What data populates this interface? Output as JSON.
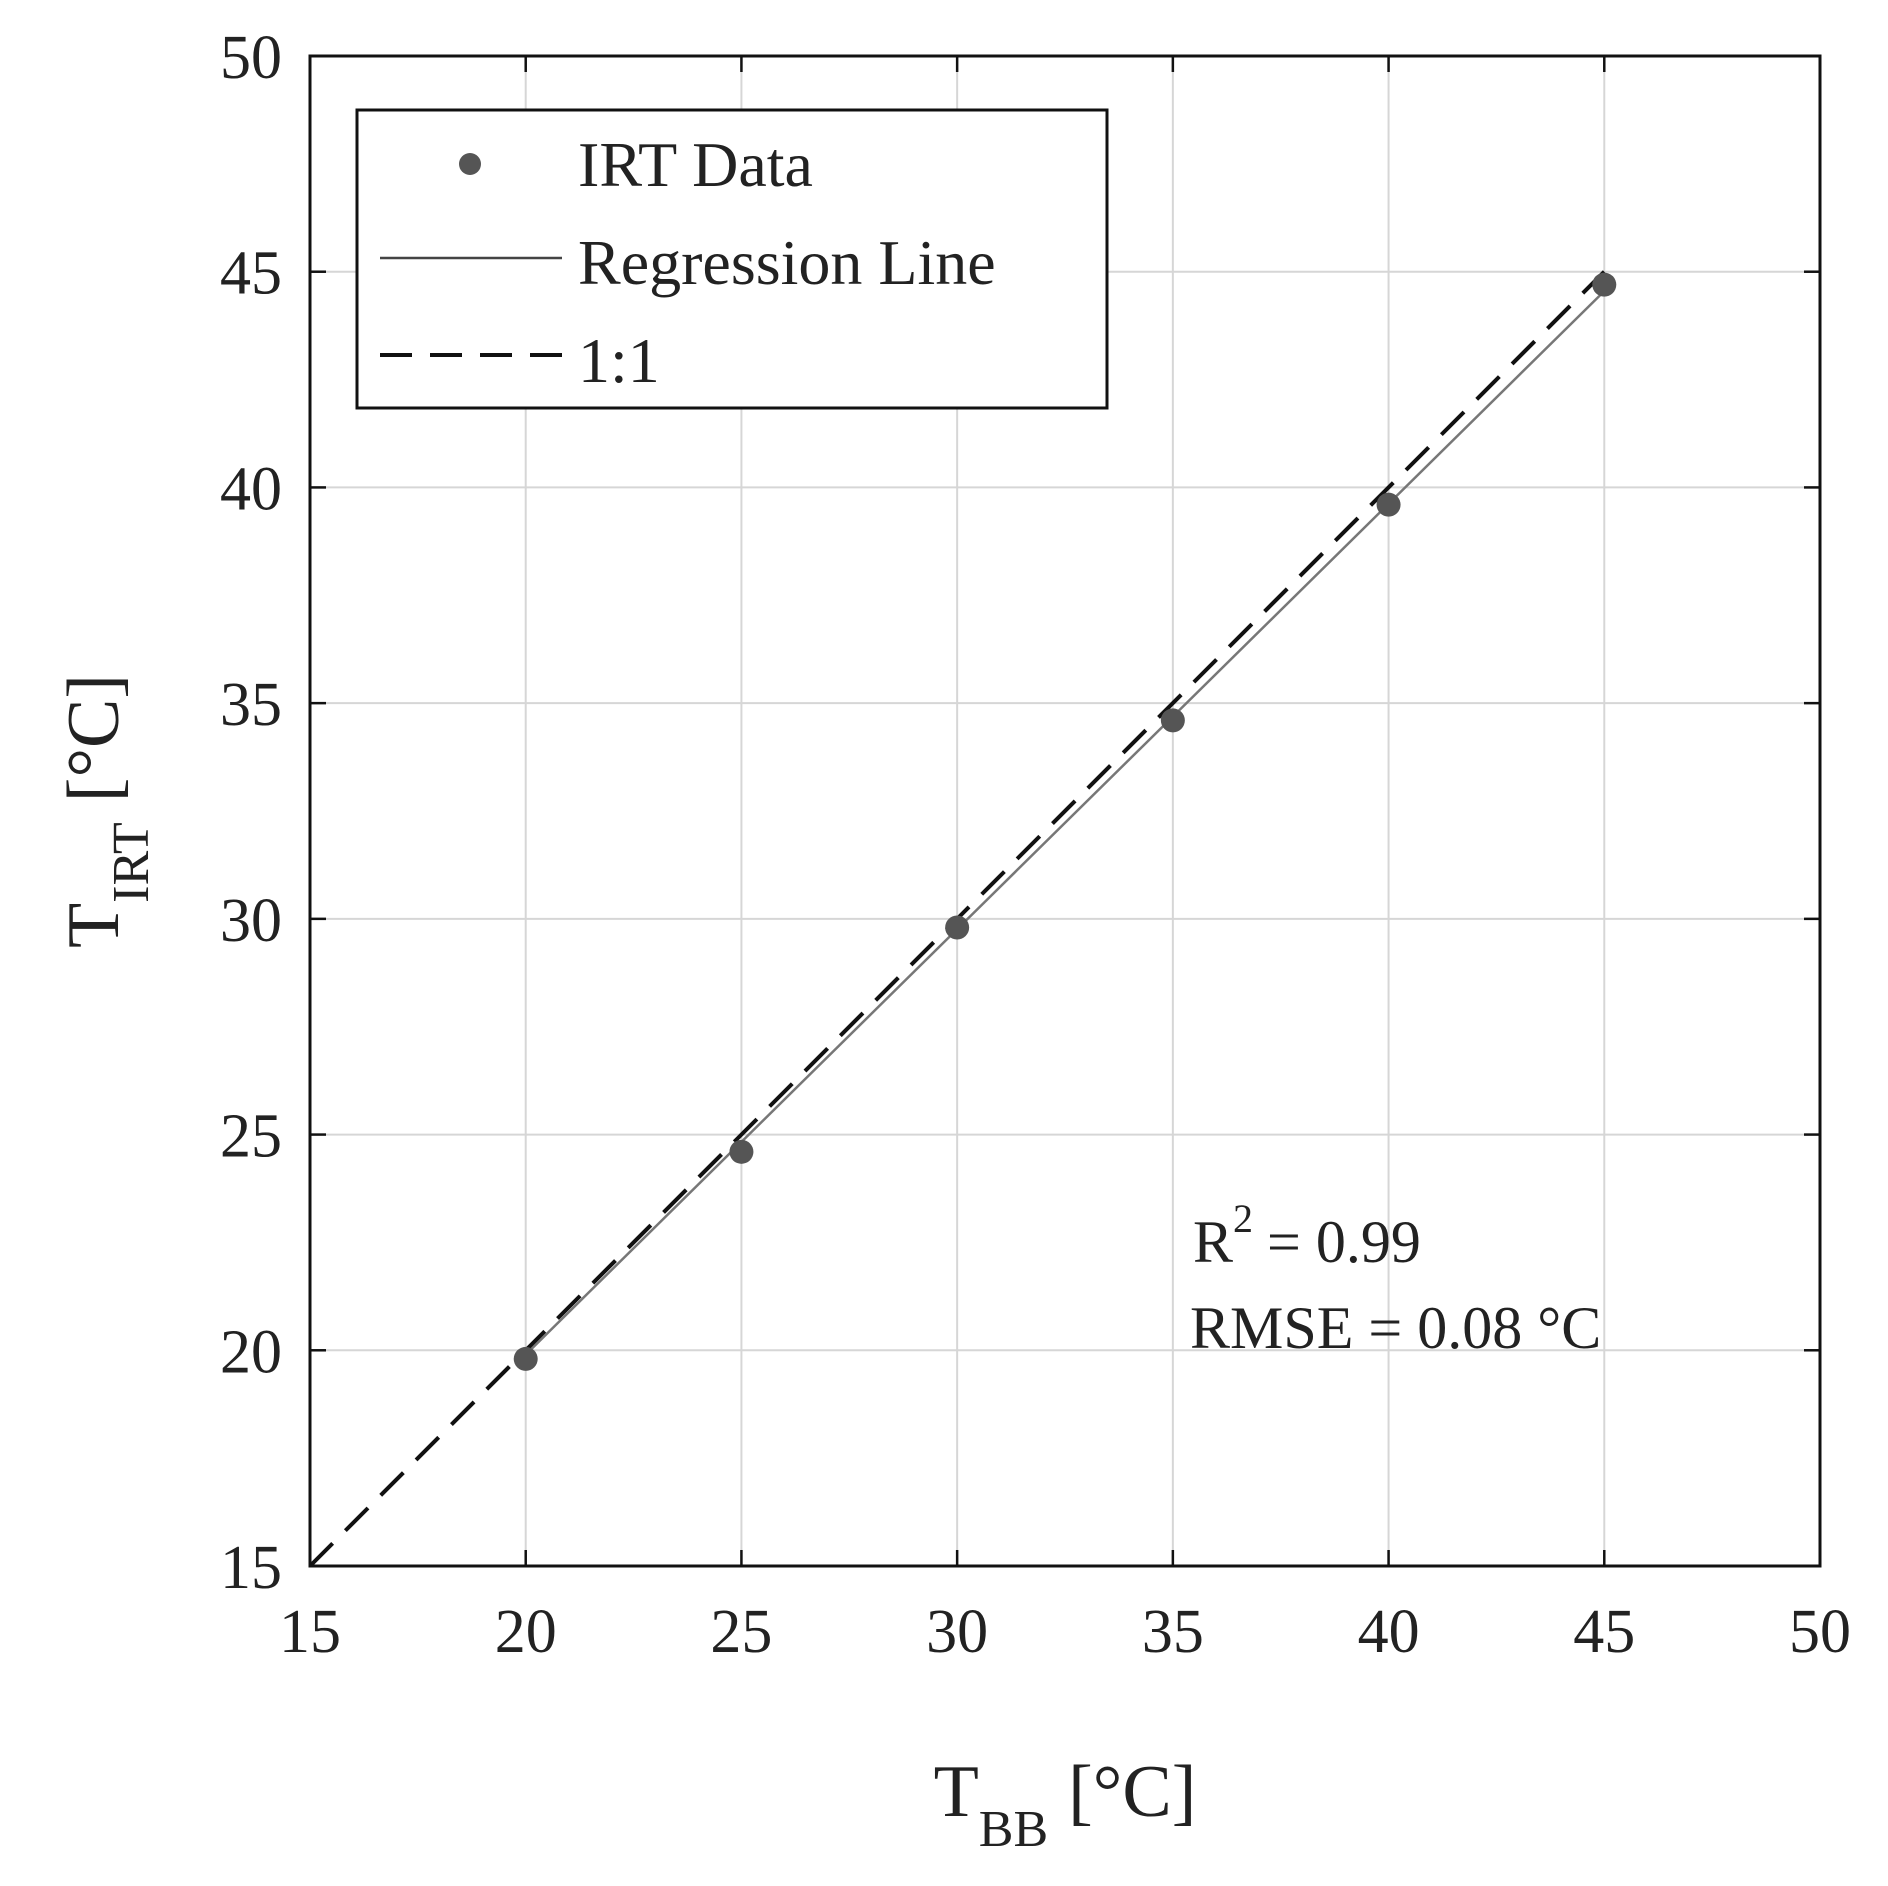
{
  "chart_data": {
    "type": "scatter",
    "xlabel": {
      "main": "T",
      "sub": "BB",
      "unit": "[°C]"
    },
    "ylabel": {
      "main": "T",
      "sub": "IRT",
      "unit": "[°C]"
    },
    "xlim": [
      15,
      50
    ],
    "ylim": [
      15,
      50
    ],
    "xticks": [
      15,
      20,
      25,
      30,
      35,
      40,
      45,
      50
    ],
    "yticks": [
      15,
      20,
      25,
      30,
      35,
      40,
      45,
      50
    ],
    "grid": true,
    "legend_position": "top-left",
    "series": [
      {
        "name": "IRT Data",
        "kind": "scatter",
        "color": "#555555",
        "points": [
          {
            "x": 20,
            "y": 19.8
          },
          {
            "x": 25,
            "y": 24.6
          },
          {
            "x": 30,
            "y": 29.8
          },
          {
            "x": 35,
            "y": 34.6
          },
          {
            "x": 40,
            "y": 39.6
          },
          {
            "x": 45,
            "y": 44.7
          }
        ]
      },
      {
        "name": "Regression Line",
        "kind": "line",
        "style": "solid",
        "color": "#777777",
        "points": [
          {
            "x": 20,
            "y": 19.9
          },
          {
            "x": 45,
            "y": 44.55
          }
        ]
      },
      {
        "name": "1:1",
        "kind": "line",
        "style": "dashed",
        "color": "#111111",
        "points": [
          {
            "x": 15,
            "y": 15
          },
          {
            "x": 45,
            "y": 45
          }
        ]
      }
    ],
    "annotations": {
      "r2": {
        "label": "R",
        "sup": "2",
        "value": "= 0.99"
      },
      "rmse": "RMSE = 0.08 °C"
    }
  }
}
